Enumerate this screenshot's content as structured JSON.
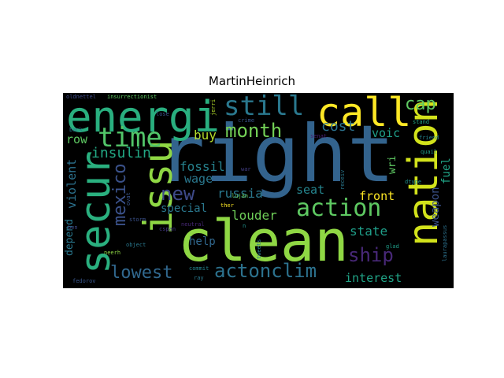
{
  "title": "MartinHeinrich",
  "words": [
    {
      "text": "right",
      "color": "#33638d"
    },
    {
      "text": "clean",
      "color": "#8fd744"
    },
    {
      "text": "energi",
      "color": "#29af7f"
    },
    {
      "text": "nation",
      "color": "#d2e21b"
    },
    {
      "text": "call",
      "color": "#fde725"
    },
    {
      "text": "secur",
      "color": "#2ab07f"
    },
    {
      "text": "issu",
      "color": "#8fd744"
    },
    {
      "text": "still",
      "color": "#2a788e"
    },
    {
      "text": "action",
      "color": "#5ec962"
    },
    {
      "text": "time",
      "color": "#52c569"
    },
    {
      "text": "ship",
      "color": "#482878"
    },
    {
      "text": "actonclim",
      "color": "#2c728e"
    },
    {
      "text": "month",
      "color": "#73d056"
    },
    {
      "text": "cap",
      "color": "#5ec962"
    },
    {
      "text": "mexico",
      "color": "#3b528b"
    },
    {
      "text": "new",
      "color": "#3e4a89"
    },
    {
      "text": "lowest",
      "color": "#31688e"
    },
    {
      "text": "cost",
      "color": "#2c728e"
    },
    {
      "text": "insulin",
      "color": "#22a884"
    },
    {
      "text": "fossil",
      "color": "#26828e"
    },
    {
      "text": "russia",
      "color": "#2a788e"
    },
    {
      "text": "special",
      "color": "#2a788e"
    },
    {
      "text": "front",
      "color": "#fde725"
    },
    {
      "text": "louder",
      "color": "#6ece58"
    },
    {
      "text": "state",
      "color": "#1f9e89"
    },
    {
      "text": "interest",
      "color": "#20a386"
    },
    {
      "text": "help",
      "color": "#31688e"
    },
    {
      "text": "buy",
      "color": "#b5de2b"
    },
    {
      "text": "seat",
      "color": "#25858e"
    },
    {
      "text": "voic",
      "color": "#1f9e89"
    },
    {
      "text": "row",
      "color": "#5ec962"
    },
    {
      "text": "wage",
      "color": "#2a788e"
    },
    {
      "text": "violent",
      "color": "#2c728e"
    },
    {
      "text": "depend",
      "color": "#2a788e"
    },
    {
      "text": "weapon",
      "color": "#3b528b"
    },
    {
      "text": "fuel",
      "color": "#20a386"
    },
    {
      "text": "wri",
      "color": "#5ec962"
    },
    {
      "text": "oldnettel",
      "color": "#3e4a89"
    },
    {
      "text": "insurrectionist",
      "color": "#5ec962"
    },
    {
      "text": "jerri",
      "color": "#b5de2b"
    },
    {
      "text": "crime",
      "color": "#39568c"
    },
    {
      "text": "senat",
      "color": "#481f70"
    },
    {
      "text": "stand",
      "color": "#22a884"
    },
    {
      "text": "friend",
      "color": "#25858e"
    },
    {
      "text": "quail",
      "color": "#1f9e89"
    },
    {
      "text": "dtype",
      "color": "#21918c"
    },
    {
      "text": "glad",
      "color": "#1f9e89"
    },
    {
      "text": "laurapassus",
      "color": "#2c728e"
    },
    {
      "text": "luján",
      "color": "#6ece58"
    },
    {
      "text": "ther",
      "color": "#fde725"
    },
    {
      "text": "war",
      "color": "#433e85"
    },
    {
      "text": "storm",
      "color": "#3b528b"
    },
    {
      "text": "neutral",
      "color": "#482878"
    },
    {
      "text": "cspan",
      "color": "#443983"
    },
    {
      "text": "object",
      "color": "#2a788e"
    },
    {
      "text": "commit",
      "color": "#25858e"
    },
    {
      "text": "ray",
      "color": "#2a788e"
    },
    {
      "text": "fedorov",
      "color": "#39568c"
    },
    {
      "text": "back",
      "color": "#2a788e"
    },
    {
      "text": "ben",
      "color": "#3e4a89"
    },
    {
      "text": "neerh",
      "color": "#8fd744"
    },
    {
      "text": "ovat",
      "color": "#39568c"
    },
    {
      "text": "lose",
      "color": "#3b528b"
    },
    {
      "text": "receiv",
      "color": "#2a788e"
    },
    {
      "text": "tweets",
      "color": "#2a788e"
    },
    {
      "text": "n",
      "color": "#21918c"
    }
  ]
}
